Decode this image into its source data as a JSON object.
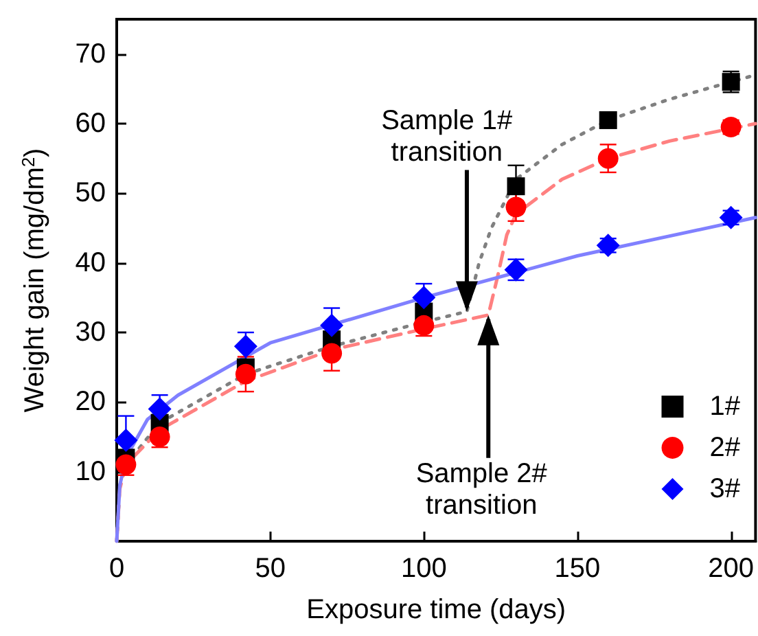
{
  "chart_data": {
    "type": "scatter",
    "xlabel": "Exposure time (days)",
    "ylabel": "Weight gain (mg/dm$^{2}$)",
    "xlim": [
      0,
      208
    ],
    "ylim": [
      0,
      75
    ],
    "xticks": [
      0,
      50,
      100,
      150,
      200
    ],
    "yticks": [
      10,
      20,
      30,
      40,
      50,
      60,
      70
    ],
    "grid": false,
    "legend": "bottom right",
    "annotations": [
      {
        "text": "Sample 1#\ntransition",
        "x": 114,
        "y": 33
      },
      {
        "text": "Sample 2#\ntransition",
        "x": 121,
        "y": 32.5
      }
    ],
    "series": [
      {
        "type": "line",
        "line_style": "dotted",
        "marker": "none",
        "color": "#808080",
        "x": [
          0,
          1,
          3,
          14,
          42,
          70,
          100,
          114,
          118,
          122,
          130,
          145,
          160,
          180,
          208
        ],
        "values": [
          0,
          8,
          11,
          17,
          24,
          28,
          31.5,
          33,
          40,
          45,
          52,
          57,
          60.5,
          63.5,
          67
        ]
      },
      {
        "type": "line",
        "line_style": "dashed",
        "marker": "none",
        "color": "#ff8080",
        "x": [
          0,
          1,
          3,
          14,
          42,
          70,
          100,
          121,
          124,
          127,
          130,
          145,
          160,
          180,
          208
        ],
        "values": [
          0,
          7.5,
          11,
          16,
          23,
          27.5,
          30.5,
          32.5,
          38,
          44,
          47,
          52,
          55,
          57.5,
          60
        ]
      },
      {
        "type": "line",
        "line_style": "solid",
        "marker": "none",
        "color": "#8080ff",
        "x": [
          0,
          1,
          3,
          10,
          20,
          50,
          100,
          150,
          208
        ],
        "values": [
          0,
          8,
          12,
          17.5,
          21,
          28.5,
          35,
          41,
          46.5
        ]
      },
      {
        "name": "1#",
        "marker": "square",
        "color": "#000000",
        "x": [
          3,
          14,
          42,
          70,
          100,
          130,
          160,
          200
        ],
        "values": [
          12,
          17,
          25,
          29,
          33,
          51,
          60.5,
          66
        ],
        "errors": [
          null,
          null,
          null,
          null,
          null,
          3,
          null,
          1.5
        ]
      },
      {
        "name": "2#",
        "marker": "circle",
        "color": "#ff0000",
        "x": [
          3,
          14,
          42,
          70,
          100,
          130,
          160,
          200
        ],
        "values": [
          11,
          15,
          24,
          27,
          31,
          48,
          55,
          59.5
        ],
        "errors": [
          1.5,
          1.5,
          2.5,
          2.5,
          1.5,
          2,
          2,
          1
        ]
      },
      {
        "name": "3#",
        "marker": "diamond",
        "color": "#0000ff",
        "x": [
          3,
          14,
          42,
          70,
          100,
          130,
          160,
          200
        ],
        "values": [
          14.5,
          19,
          28,
          31,
          35,
          39,
          42.5,
          46.5
        ],
        "errors": [
          3.5,
          2,
          2,
          2.5,
          2,
          1.5,
          1,
          1
        ]
      }
    ]
  }
}
